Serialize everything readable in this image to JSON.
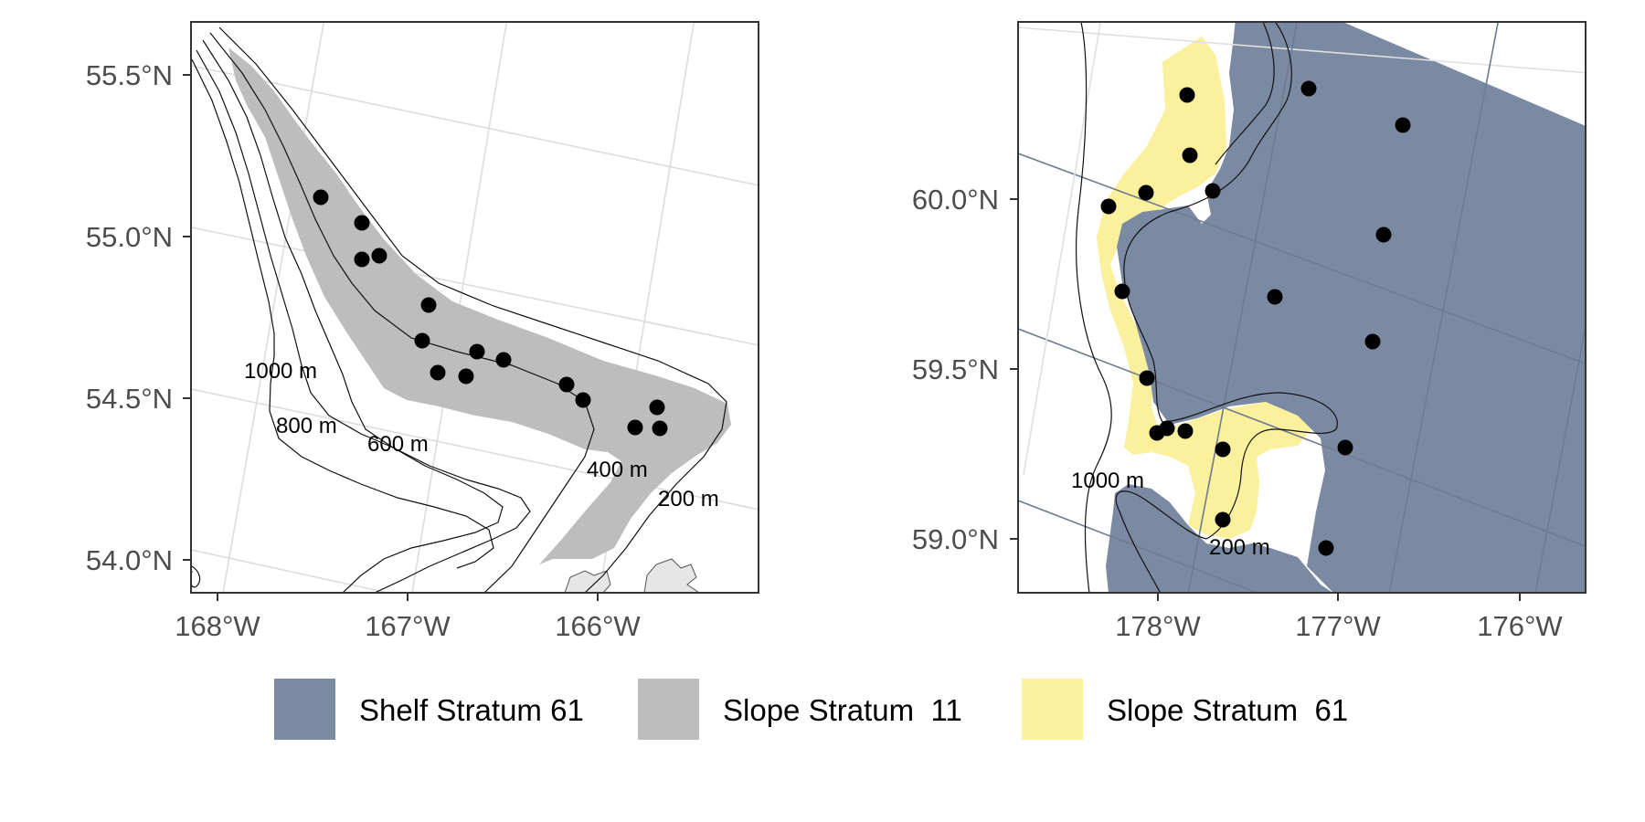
{
  "colors": {
    "shelf_61": "#7b8aa3",
    "slope_11": "#bdbdbd",
    "slope_61": "#fbf09b",
    "land": "#e6e6e6",
    "station": "#000000"
  },
  "maps": [
    {
      "id": "left",
      "lat_ticks": [
        "55.5°N",
        "55.0°N",
        "54.5°N",
        "54.0°N"
      ],
      "lon_ticks": [
        "168°W",
        "167°W",
        "166°W"
      ],
      "contour_labels": [
        "1000 m",
        "800 m",
        "600 m",
        "400 m",
        "200 m"
      ],
      "stations": 16
    },
    {
      "id": "right",
      "lat_ticks": [
        "60.0°N",
        "59.5°N",
        "59.0°N"
      ],
      "lon_ticks": [
        "178°W",
        "177°W",
        "176°W"
      ],
      "contour_labels": [
        "1000 m",
        "200 m"
      ],
      "stations": 20
    }
  ],
  "legend": [
    {
      "label": "Shelf Stratum 61",
      "color": "#7b8aa3"
    },
    {
      "label": "Slope Stratum  11",
      "color": "#bdbdbd"
    },
    {
      "label": "Slope Stratum  61",
      "color": "#fbf09b"
    }
  ]
}
